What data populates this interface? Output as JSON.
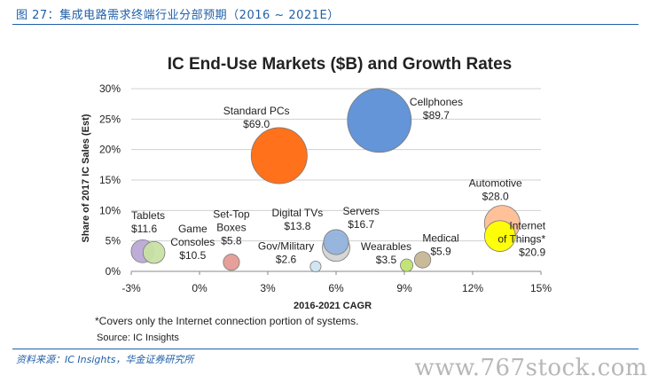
{
  "figure_title": "图 27：集成电路需求终端行业分部预期（2016 ~ 2021E）",
  "source_text": "资料来源：IC Insights，华金证券研究所",
  "watermark": "www.767stock.com",
  "chart_data": {
    "type": "scatter",
    "title": "IC End-Use Markets ($B) and Growth Rates",
    "xlabel": "2016-2021 CAGR",
    "ylabel": "Share of 2017 IC Sales (Est)",
    "xlim": [
      -3,
      15
    ],
    "ylim": [
      0,
      30
    ],
    "xticks": [
      "-3%",
      "0%",
      "3%",
      "6%",
      "9%",
      "12%",
      "15%"
    ],
    "yticks": [
      "0%",
      "5%",
      "10%",
      "15%",
      "20%",
      "25%",
      "30%"
    ],
    "grid": "horizontal",
    "footnote": "*Covers only the Internet connection portion of systems.",
    "source": "Source: IC Insights",
    "points": [
      {
        "name": "Tablets",
        "value_label": "$11.6",
        "x": -2.5,
        "y": 3.3,
        "size": 11.6,
        "color": "#b9a9d6"
      },
      {
        "name": "Game Consoles",
        "value_label": "$10.5",
        "x": -2.0,
        "y": 3.1,
        "size": 10.5,
        "color": "#c8e0a4"
      },
      {
        "name": "Set-Top Boxes",
        "value_label": "$5.8",
        "x": 1.4,
        "y": 1.5,
        "size": 5.8,
        "color": "#e59a94"
      },
      {
        "name": "Standard PCs",
        "value_label": "$69.0",
        "x": 3.5,
        "y": 19.0,
        "size": 69.0,
        "color": "#ff6a0f"
      },
      {
        "name": "Gov/Military",
        "value_label": "$2.6",
        "x": 5.1,
        "y": 0.8,
        "size": 2.6,
        "color": "#cfe4f1"
      },
      {
        "name": "Digital TVs",
        "value_label": "$13.8",
        "x": 6.0,
        "y": 4.8,
        "size": 13.8,
        "color": "#93b3dd"
      },
      {
        "name": "Servers",
        "value_label": "$16.7",
        "x": 6.0,
        "y": 3.9,
        "size": 16.7,
        "color": "#d4d4d4"
      },
      {
        "name": "Cellphones",
        "value_label": "$89.7",
        "x": 7.9,
        "y": 24.8,
        "size": 89.7,
        "color": "#5b8fd6"
      },
      {
        "name": "Wearables",
        "value_label": "$3.5",
        "x": 9.1,
        "y": 1.0,
        "size": 3.5,
        "color": "#bfe26e"
      },
      {
        "name": "Medical",
        "value_label": "$5.9",
        "x": 9.8,
        "y": 1.9,
        "size": 5.9,
        "color": "#c6b794"
      },
      {
        "name": "Automotive",
        "value_label": "$28.0",
        "x": 13.3,
        "y": 7.9,
        "size": 28.0,
        "color": "#ffbe95"
      },
      {
        "name": "Internet of Things*",
        "value_label": "$20.9",
        "x": 13.2,
        "y": 5.8,
        "size": 20.9,
        "color": "#ffff00"
      }
    ],
    "labels": [
      {
        "lines": [
          "Tablets",
          "$11.6"
        ],
        "x": -3.0,
        "y": 8.6,
        "anchor": "start"
      },
      {
        "lines": [
          "Game",
          "Consoles",
          "$10.5"
        ],
        "x": -0.3,
        "y": 6.4,
        "anchor": "middle"
      },
      {
        "lines": [
          "Set-Top",
          "Boxes",
          "$5.8"
        ],
        "x": 1.4,
        "y": 8.8,
        "anchor": "middle"
      },
      {
        "lines": [
          "Standard PCs",
          "$69.0"
        ],
        "x": 2.5,
        "y": 25.8,
        "anchor": "middle"
      },
      {
        "lines": [
          "Gov/Military",
          "$2.6"
        ],
        "x": 3.8,
        "y": 3.6,
        "anchor": "middle"
      },
      {
        "lines": [
          "Digital TVs",
          "$13.8"
        ],
        "x": 4.3,
        "y": 9.0,
        "anchor": "middle"
      },
      {
        "lines": [
          "Servers",
          "$16.7"
        ],
        "x": 7.1,
        "y": 9.3,
        "anchor": "middle"
      },
      {
        "lines": [
          "Cellphones",
          "$89.7"
        ],
        "x": 10.4,
        "y": 27.2,
        "anchor": "middle"
      },
      {
        "lines": [
          "Wearables",
          "$3.5"
        ],
        "x": 8.2,
        "y": 3.5,
        "anchor": "middle"
      },
      {
        "lines": [
          "Medical",
          "$5.9"
        ],
        "x": 10.6,
        "y": 4.9,
        "anchor": "middle"
      },
      {
        "lines": [
          "Automotive",
          "$28.0"
        ],
        "x": 13.0,
        "y": 13.9,
        "anchor": "middle"
      },
      {
        "lines": [
          "Internet",
          "of Things*",
          "$20.9"
        ],
        "x": 15.2,
        "y": 6.9,
        "anchor": "end"
      }
    ]
  }
}
